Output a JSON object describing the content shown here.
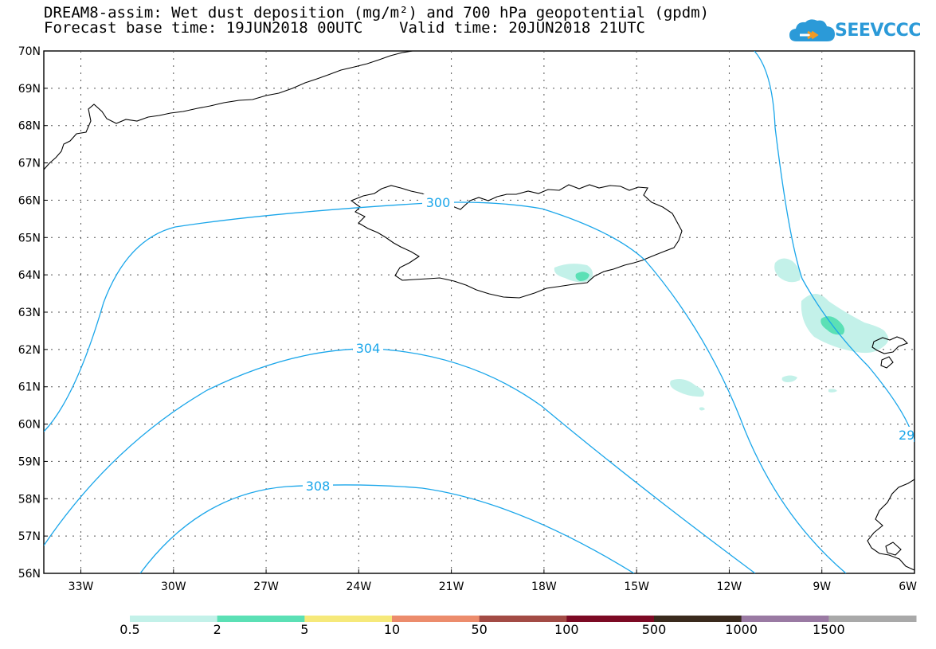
{
  "title": {
    "line1": "DREAM8-assim: Wet dust deposition (mg/m²) and 700 hPa geopotential (gpdm)",
    "line2": "Forecast base time: 19JUN2018 00UTC    Valid time: 20JUN2018 21UTC"
  },
  "logo": {
    "text": "SEEVCCC",
    "icon": "cloud-icon"
  },
  "map": {
    "lat_labels": [
      "70N",
      "69N",
      "68N",
      "67N",
      "66N",
      "65N",
      "64N",
      "63N",
      "62N",
      "61N",
      "60N",
      "59N",
      "58N",
      "57N",
      "56N"
    ],
    "lon_labels": [
      "33W",
      "30W",
      "27W",
      "24W",
      "21W",
      "18W",
      "15W",
      "12W",
      "9W",
      "6W"
    ],
    "lat_range": [
      56,
      70
    ],
    "lon_range": [
      -34.2,
      -6
    ],
    "gridlines": true,
    "contour_color": "#1aa6ea",
    "contour_labels": [
      "300",
      "304",
      "308",
      "29"
    ]
  },
  "legend": {
    "labels": [
      "0.5",
      "2",
      "5",
      "10",
      "50",
      "100",
      "500",
      "1000",
      "1500"
    ],
    "colors": [
      "#c3f1e9",
      "#5be0b5",
      "#f6e97a",
      "#ec8c6c",
      "#a34b45",
      "#7c0a24",
      "#3a2a1d",
      "#9a7aa3",
      "#a9a9a9"
    ]
  }
}
